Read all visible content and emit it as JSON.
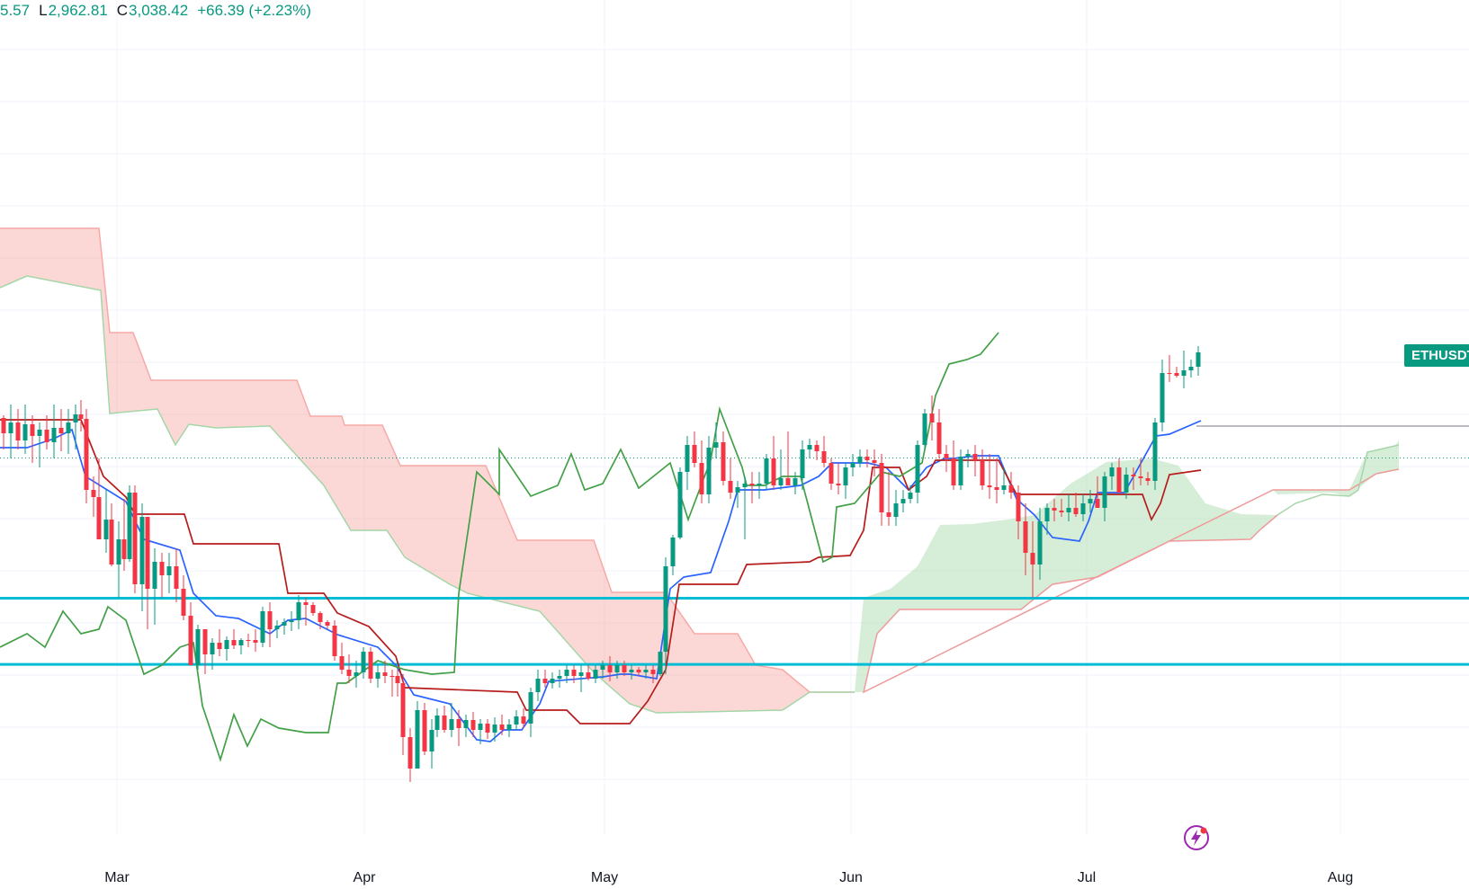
{
  "legend": {
    "open_fragment": "5.57",
    "low_label": "L",
    "low_value": "2,962.81",
    "close_label": "C",
    "close_value": "3,038.42",
    "change": "+66.39 (+2.23%)"
  },
  "symbol_tag": "ETHUSDT",
  "colors": {
    "up": "#089981",
    "down": "#f23645",
    "tenkan": "#2962ff",
    "kijun": "#b71c1c",
    "chikou": "#43a047",
    "cloud_bull": "#a5d6a7",
    "cloud_bear": "#f7a9a5",
    "level_lines": "#00bcd4"
  },
  "icons": {
    "lightning": "lightning-icon"
  },
  "chart_data": {
    "type": "candlestick",
    "title": "",
    "x_tick_labels": [
      "Mar",
      "Apr",
      "May",
      "Jun",
      "Jul",
      "Aug"
    ],
    "indicators": [
      "Ichimoku Cloud"
    ],
    "horizontal_lines": [
      2530,
      2290
    ],
    "last_close": 3038.42,
    "price_range_visible": [
      1700,
      4700
    ],
    "grid": true
  }
}
